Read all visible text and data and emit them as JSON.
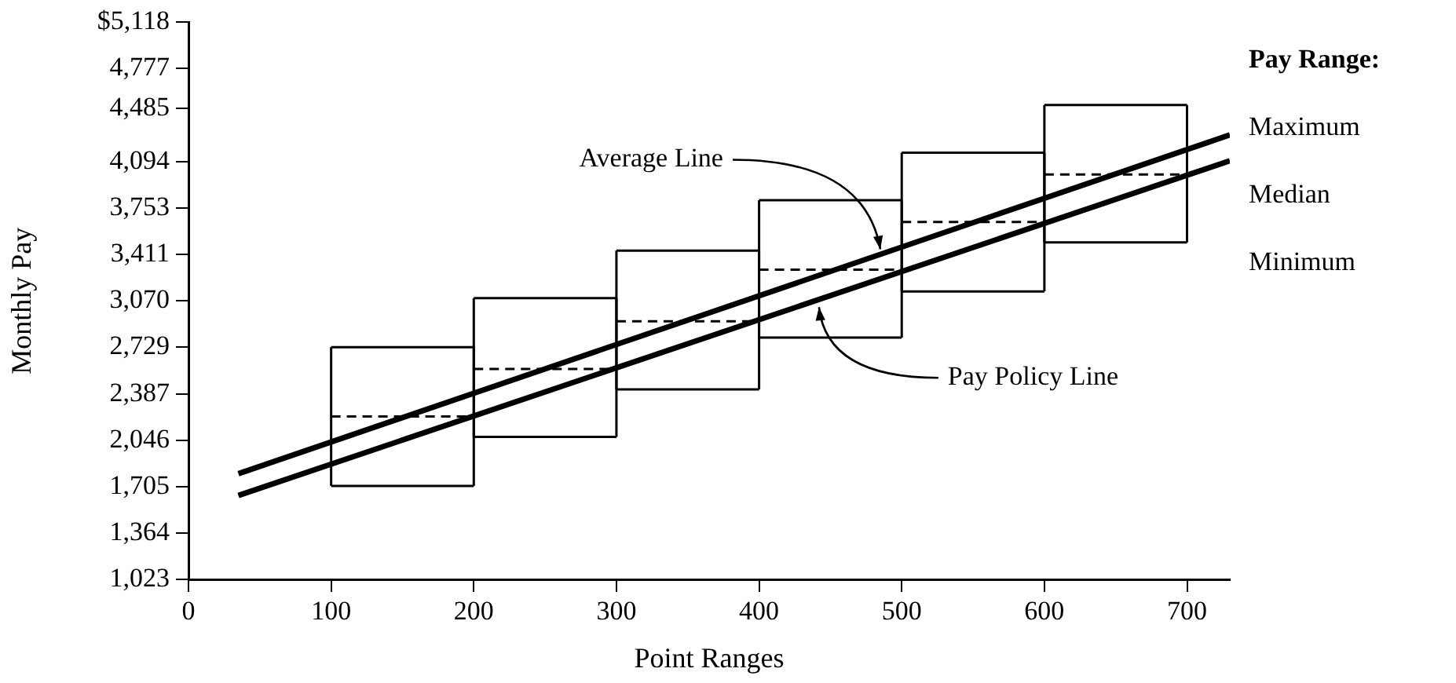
{
  "chart_data": {
    "type": "line",
    "xlabel": "Point Ranges",
    "ylabel": "Monthly Pay",
    "legend_title": "Pay Range:",
    "legend": "right",
    "marker": "none",
    "grid": false,
    "xlim": [
      0,
      730
    ],
    "xticks": [
      0,
      100,
      200,
      300,
      400,
      500,
      600,
      700
    ],
    "ylim": [
      1023,
      5118
    ],
    "yticks": [
      {
        "value": 1023,
        "label": "1,023"
      },
      {
        "value": 1364,
        "label": "1,364"
      },
      {
        "value": 1705,
        "label": "1,705"
      },
      {
        "value": 2046,
        "label": "2,046"
      },
      {
        "value": 2387,
        "label": "2,387"
      },
      {
        "value": 2729,
        "label": "2,729"
      },
      {
        "value": 3070,
        "label": "3,070"
      },
      {
        "value": 3411,
        "label": "3,411"
      },
      {
        "value": 3753,
        "label": "3,753"
      },
      {
        "value": 4094,
        "label": "4,094"
      },
      {
        "value": 4485,
        "label": "4,485"
      },
      {
        "value": 4777,
        "label": "4,777"
      },
      {
        "value": 5118,
        "label": "$5,118"
      }
    ],
    "series": [
      {
        "name": "Maximum",
        "color": "#000000",
        "x": [
          100,
          200,
          200,
          300,
          300,
          400,
          400,
          500,
          500,
          600,
          600,
          700
        ],
        "values": [
          2730,
          2730,
          3090,
          3090,
          3440,
          3440,
          3810,
          3810,
          4160,
          4160,
          4510,
          4510
        ],
        "errors": [
          [
            1710,
            2730
          ],
          [
            1710,
            2730
          ],
          [
            2070,
            3090
          ],
          [
            2070,
            3090
          ],
          [
            2420,
            3440
          ],
          [
            2420,
            3440
          ],
          [
            2800,
            3810
          ],
          [
            2800,
            3810
          ],
          [
            3140,
            4160
          ],
          [
            3140,
            4160
          ],
          [
            3500,
            4510
          ],
          [
            3500,
            4510
          ]
        ]
      },
      {
        "name": "Median",
        "color": "#000000",
        "line_style": "dashed",
        "x": [
          100,
          200,
          200,
          300,
          300,
          400,
          400,
          500,
          500,
          600,
          600,
          700
        ],
        "values": [
          2220,
          2220,
          2570,
          2570,
          2920,
          2920,
          3300,
          3300,
          3650,
          3650,
          4000,
          4000
        ]
      },
      {
        "name": "Minimum",
        "color": "#000000",
        "x": [
          100,
          200,
          200,
          300,
          300,
          400,
          400,
          500,
          500,
          600,
          600,
          700
        ],
        "values": [
          1710,
          1710,
          2070,
          2070,
          2420,
          2420,
          2800,
          2800,
          3140,
          3140,
          3500,
          3500
        ]
      },
      {
        "color": "#000000",
        "x": [
          35,
          730
        ],
        "values": [
          1800,
          4290
        ]
      },
      {
        "color": "#000000",
        "x": [
          35,
          730
        ],
        "values": [
          1640,
          4100
        ]
      }
    ],
    "annotations": [
      {
        "text": "Average Line",
        "x": 485,
        "y": 3450
      },
      {
        "text": "Pay Policy Line",
        "x": 442,
        "y": 3024
      }
    ]
  }
}
